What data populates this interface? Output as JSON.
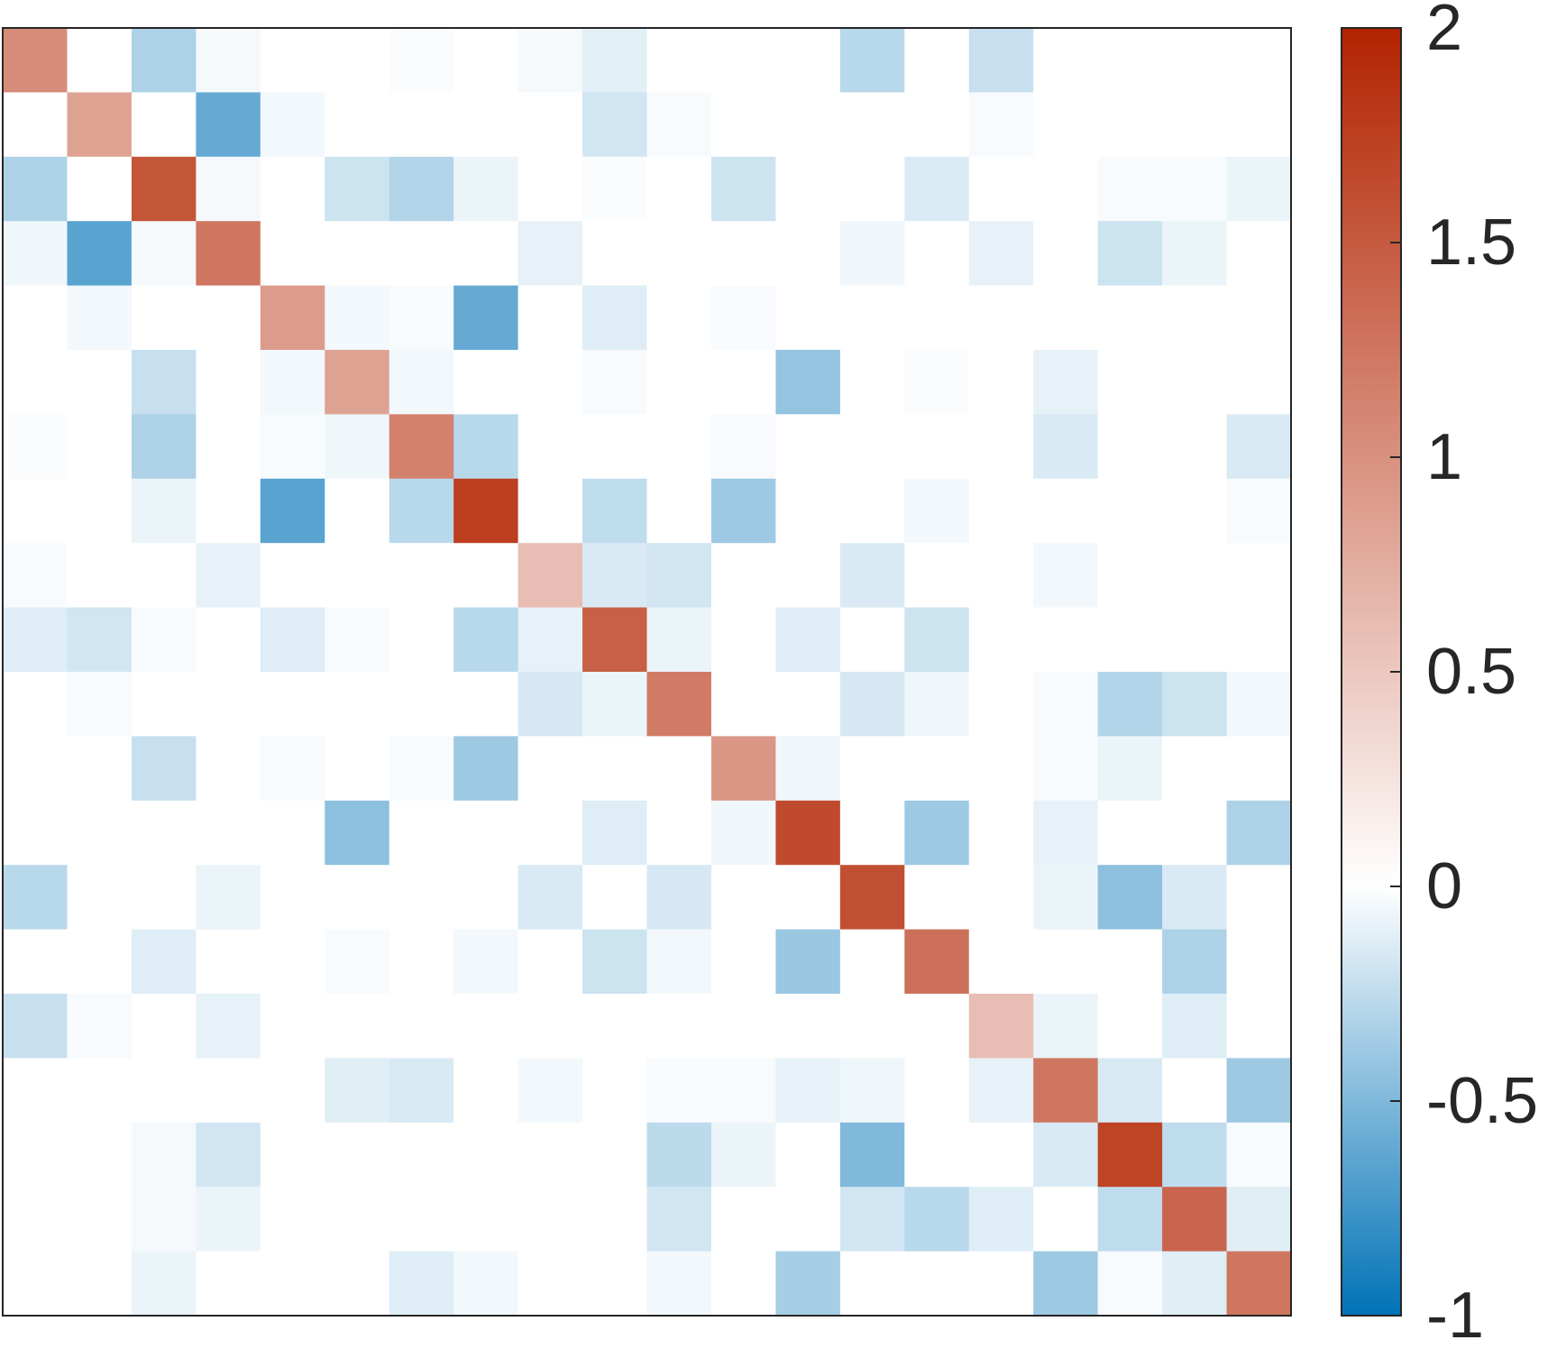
{
  "chart_data": {
    "type": "heatmap",
    "title": "",
    "xlabel": "",
    "ylabel": "",
    "rows": 20,
    "cols": 20,
    "grid": false,
    "legend": "colorbar-right",
    "colorbar": {
      "min": -1,
      "max": 2,
      "ticks": [
        2,
        1.5,
        1,
        0.5,
        0,
        -0.5,
        -1
      ],
      "tick_labels": [
        "2",
        "1.5",
        "1",
        "0.5",
        "0",
        "-0.5",
        "-1"
      ],
      "color_low": "#0072b6",
      "color_zero": "#ffffff",
      "color_high": "#b22300"
    },
    "values": [
      [
        1.05,
        0,
        -0.32,
        -0.04,
        0,
        0,
        -0.02,
        0,
        -0.04,
        -0.11,
        0,
        0,
        0,
        -0.28,
        0,
        -0.22,
        0,
        0,
        0,
        0
      ],
      [
        0,
        0.85,
        0,
        -0.6,
        -0.05,
        0,
        0,
        0,
        0,
        -0.18,
        -0.03,
        0,
        0,
        0,
        0,
        -0.03,
        0,
        0,
        0,
        0
      ],
      [
        -0.32,
        0,
        1.55,
        -0.04,
        0,
        -0.2,
        -0.3,
        -0.08,
        0,
        -0.02,
        0,
        -0.2,
        0,
        0,
        -0.14,
        0,
        0,
        -0.03,
        -0.03,
        -0.08
      ],
      [
        -0.06,
        -0.65,
        -0.04,
        1.25,
        0,
        0,
        0,
        0,
        -0.1,
        0,
        0,
        0,
        0,
        -0.06,
        0,
        -0.1,
        0,
        -0.2,
        -0.08,
        0
      ],
      [
        0,
        -0.05,
        0,
        0,
        0.9,
        -0.05,
        -0.03,
        -0.6,
        0,
        -0.13,
        0,
        -0.03,
        0,
        0,
        0,
        0,
        0,
        0,
        0,
        0
      ],
      [
        0,
        0,
        -0.22,
        0,
        -0.05,
        0.85,
        -0.05,
        0,
        0,
        -0.03,
        0,
        0,
        -0.42,
        0,
        -0.02,
        0,
        -0.1,
        0,
        0,
        0
      ],
      [
        -0.02,
        0,
        -0.32,
        0,
        -0.03,
        -0.06,
        1.15,
        -0.28,
        0,
        0,
        0,
        -0.03,
        0,
        0,
        0,
        0,
        -0.15,
        0,
        0,
        -0.15
      ],
      [
        0,
        0,
        -0.08,
        0,
        -0.65,
        0,
        -0.28,
        1.75,
        0,
        -0.25,
        0,
        -0.38,
        0,
        0,
        -0.05,
        0,
        0,
        0,
        0,
        -0.03
      ],
      [
        -0.03,
        0,
        0,
        -0.1,
        0,
        0,
        0,
        0,
        0.6,
        -0.15,
        -0.18,
        0,
        0,
        -0.15,
        0,
        0,
        -0.05,
        0,
        0,
        0
      ],
      [
        -0.13,
        -0.18,
        -0.03,
        0,
        -0.13,
        -0.03,
        0,
        -0.28,
        -0.1,
        1.45,
        -0.08,
        0,
        -0.13,
        0,
        -0.2,
        0,
        0,
        0,
        0,
        0
      ],
      [
        0,
        -0.03,
        0,
        0,
        0,
        0,
        0,
        0,
        -0.16,
        -0.08,
        1.2,
        0,
        0,
        -0.16,
        -0.06,
        0,
        -0.03,
        -0.3,
        -0.2,
        -0.05
      ],
      [
        0,
        0,
        -0.22,
        0,
        -0.03,
        0,
        -0.03,
        -0.38,
        0,
        0,
        0,
        0.95,
        -0.06,
        0,
        0,
        0,
        -0.03,
        -0.08,
        0,
        0
      ],
      [
        0,
        0,
        0,
        0,
        0,
        -0.45,
        0,
        0,
        0,
        -0.13,
        0,
        -0.06,
        1.65,
        0,
        -0.38,
        0,
        -0.1,
        0,
        0,
        -0.32
      ],
      [
        -0.28,
        0,
        0,
        -0.08,
        0,
        0,
        0,
        0,
        -0.15,
        0,
        -0.16,
        0,
        0,
        1.6,
        0,
        0,
        -0.08,
        -0.45,
        -0.15,
        0
      ],
      [
        0,
        0,
        -0.13,
        0,
        0,
        -0.03,
        0,
        -0.05,
        0,
        -0.2,
        -0.05,
        0,
        -0.4,
        0,
        1.3,
        0,
        0,
        0,
        -0.32,
        0
      ],
      [
        -0.22,
        -0.03,
        0,
        -0.1,
        0,
        0,
        0,
        0,
        0,
        0,
        0,
        0,
        0,
        0,
        0,
        0.6,
        -0.08,
        0,
        -0.13,
        0
      ],
      [
        0,
        0,
        0,
        0,
        0,
        -0.12,
        -0.15,
        0,
        -0.05,
        0,
        -0.03,
        -0.03,
        -0.1,
        -0.06,
        0,
        -0.1,
        1.25,
        -0.15,
        0,
        -0.38
      ],
      [
        0,
        0,
        -0.04,
        -0.18,
        0,
        0,
        0,
        0,
        0,
        0,
        -0.26,
        -0.08,
        0,
        -0.5,
        0,
        0,
        -0.15,
        1.7,
        -0.25,
        -0.03
      ],
      [
        0,
        0,
        -0.04,
        -0.08,
        0,
        0,
        0,
        0,
        0,
        0,
        -0.18,
        0,
        0,
        -0.18,
        -0.28,
        -0.13,
        0,
        -0.25,
        1.4,
        -0.12
      ],
      [
        0,
        0,
        -0.08,
        0,
        0,
        0,
        -0.13,
        -0.05,
        0,
        0,
        -0.05,
        0,
        -0.35,
        0,
        0,
        0,
        -0.38,
        -0.03,
        -0.12,
        1.25
      ]
    ]
  }
}
